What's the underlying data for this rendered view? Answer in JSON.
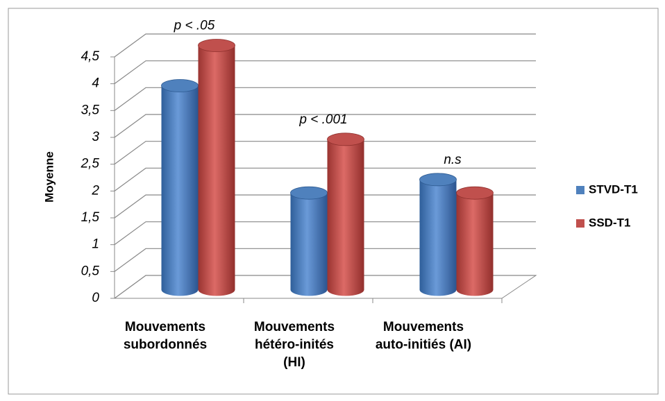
{
  "chart_data": {
    "type": "bar3d",
    "y_label": "Moyenne",
    "categories": [
      [
        "Mouvements",
        "subordonnés"
      ],
      [
        "Mouvements",
        "hétéro-inités",
        "(HI)"
      ],
      [
        "Mouvements",
        "auto-initiés (AI)"
      ]
    ],
    "series": [
      {
        "name": "STVD-T1",
        "color": "#4f81bd",
        "values": [
          3.75,
          1.75,
          2.0
        ]
      },
      {
        "name": "SSD-T1",
        "color": "#c0504d",
        "values": [
          4.5,
          2.75,
          1.75
        ]
      }
    ],
    "annotations": [
      "p < .05",
      "p < .001",
      "n.s"
    ],
    "ylim": [
      0,
      4.5
    ],
    "yticks": [
      0,
      {
        "value": 0.5,
        "label": "0,5"
      },
      1,
      {
        "value": 1.5,
        "label": "1,5"
      },
      2,
      {
        "value": 2.5,
        "label": "2,5"
      },
      3,
      {
        "value": 3.5,
        "label": "3,5"
      },
      4,
      {
        "value": 4.5,
        "label": "4,5"
      }
    ],
    "grid": true,
    "legend": "right"
  }
}
